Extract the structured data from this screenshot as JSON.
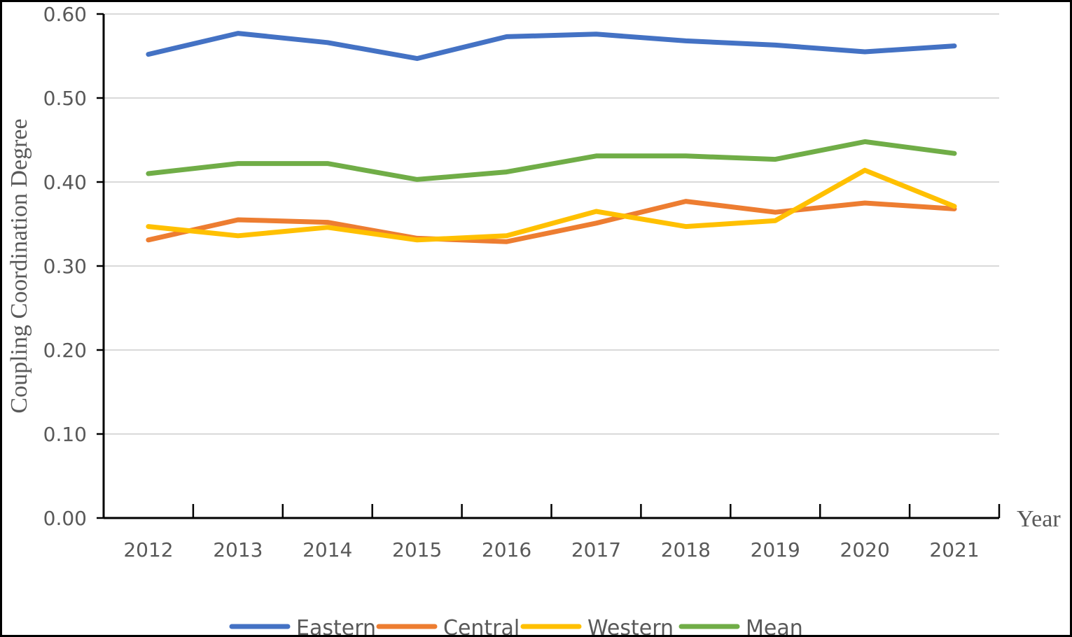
{
  "chart_data": {
    "type": "line",
    "title": "",
    "xlabel": "Year",
    "ylabel": "Coupling Coordination Degree",
    "categories": [
      "2012",
      "2013",
      "2014",
      "2015",
      "2016",
      "2017",
      "2018",
      "2019",
      "2020",
      "2021"
    ],
    "ylim": [
      0,
      0.6
    ],
    "yticks": [
      "0.00",
      "0.10",
      "0.20",
      "0.30",
      "0.40",
      "0.50",
      "0.60"
    ],
    "grid": "horizontal",
    "legend_position": "bottom",
    "series": [
      {
        "name": "Eastern",
        "color": "#4472C4",
        "values": [
          0.552,
          0.577,
          0.566,
          0.547,
          0.573,
          0.576,
          0.568,
          0.563,
          0.555,
          0.562
        ]
      },
      {
        "name": "Central",
        "color": "#ED7D31",
        "values": [
          0.331,
          0.355,
          0.352,
          0.333,
          0.329,
          0.351,
          0.377,
          0.364,
          0.375,
          0.368
        ]
      },
      {
        "name": "Western",
        "color": "#FFC000",
        "values": [
          0.347,
          0.336,
          0.346,
          0.331,
          0.336,
          0.365,
          0.347,
          0.354,
          0.414,
          0.371
        ]
      },
      {
        "name": "Mean",
        "color": "#70AD47",
        "values": [
          0.41,
          0.422,
          0.422,
          0.403,
          0.412,
          0.431,
          0.431,
          0.427,
          0.448,
          0.434
        ]
      }
    ]
  }
}
